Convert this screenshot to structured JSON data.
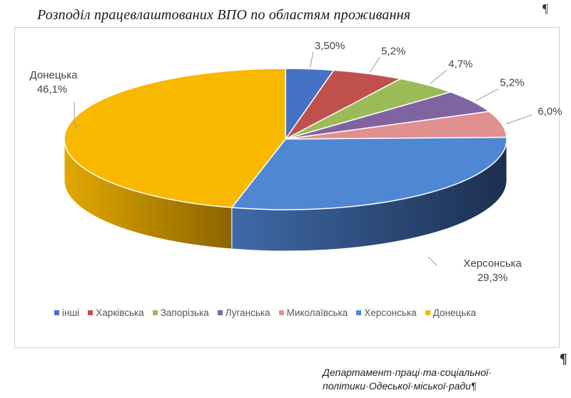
{
  "page": {
    "footer_line1": "Департамент·праці·та·соціальної·",
    "footer_line2": "політики·Одеської·міської·ради¶",
    "pilcrow_top": "¶",
    "pilcrow_right": "¶"
  },
  "chart_data": {
    "type": "pie",
    "title": "Розподіл працевлаштованих ВПО по областям проживання",
    "legend_position": "bottom",
    "slices": [
      {
        "name": "інші",
        "value": 3.5,
        "label": "3,50%",
        "color": "#4472C4"
      },
      {
        "name": "Харківська",
        "value": 5.2,
        "label": "5,2%",
        "color": "#C0504D"
      },
      {
        "name": "Запорізька",
        "value": 4.7,
        "label": "4,7%",
        "color": "#9BBB59"
      },
      {
        "name": "Луганська",
        "value": 5.2,
        "label": "5,2%",
        "color": "#8064A2"
      },
      {
        "name": "Миколаївська",
        "value": 6.0,
        "label": "6,0%",
        "color": "#E0908E"
      },
      {
        "name": "Херсонська",
        "value": 29.3,
        "label": "29,3%",
        "color": "#4F87D5",
        "label_name": "Херсонська"
      },
      {
        "name": "Донецька",
        "value": 46.1,
        "label": "46,1%",
        "color": "#F8B800",
        "label_name": "Донецька"
      }
    ]
  }
}
